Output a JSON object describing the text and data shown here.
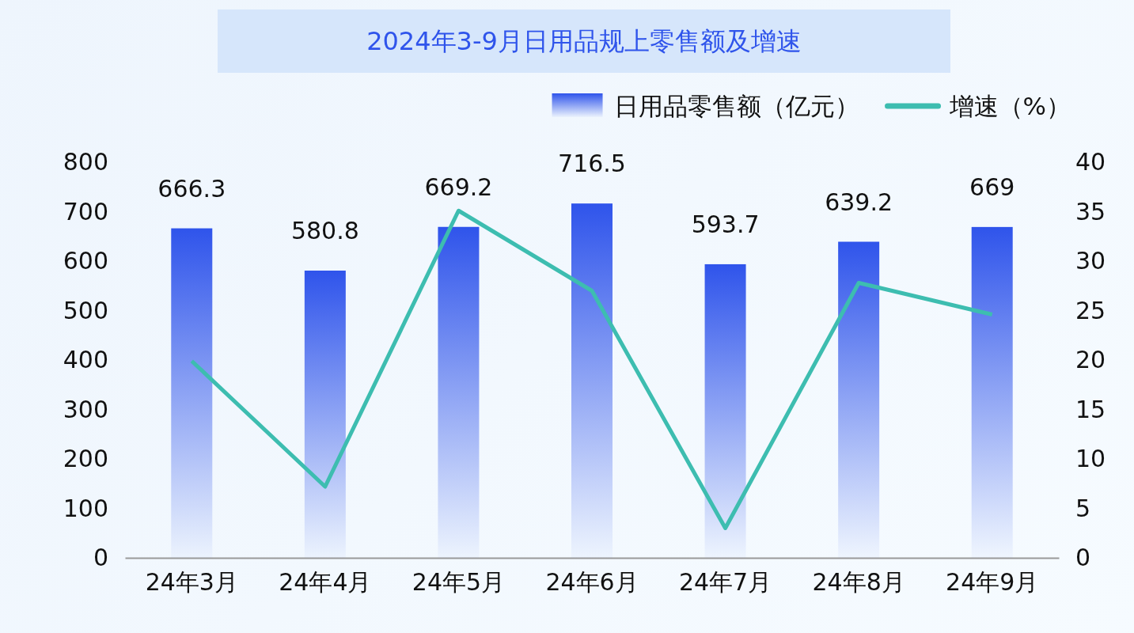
{
  "chart_data": {
    "type": "bar",
    "title": "2024年3-9月日用品规上零售额及增速",
    "categories": [
      "24年3月",
      "24年4月",
      "24年5月",
      "24年6月",
      "24年7月",
      "24年8月",
      "24年9月"
    ],
    "series": [
      {
        "name": "日用品零售额（亿元）",
        "color": "#2f54eb",
        "values": [
          666.3,
          580.8,
          669.2,
          716.5,
          593.7,
          639.2,
          669
        ],
        "value_labels": [
          "666.3",
          "580.8",
          "669.2",
          "716.5",
          "593.7",
          "639.2",
          "669"
        ]
      },
      {
        "name": "增速（%）",
        "type": "line",
        "axis": "y2",
        "color": "#3dbdb0",
        "values": [
          19.9,
          7.2,
          35.1,
          27.0,
          3.0,
          27.8,
          24.6
        ]
      }
    ],
    "ylim": [
      0,
      800
    ],
    "yticks": [
      0,
      100,
      200,
      300,
      400,
      500,
      600,
      700,
      800
    ],
    "y2lim": [
      0,
      40
    ],
    "y2ticks": [
      0,
      5,
      10,
      15,
      20,
      25,
      30,
      35,
      40
    ],
    "legend": "top right",
    "grid": false,
    "marker": "none",
    "line_style": "solid"
  }
}
